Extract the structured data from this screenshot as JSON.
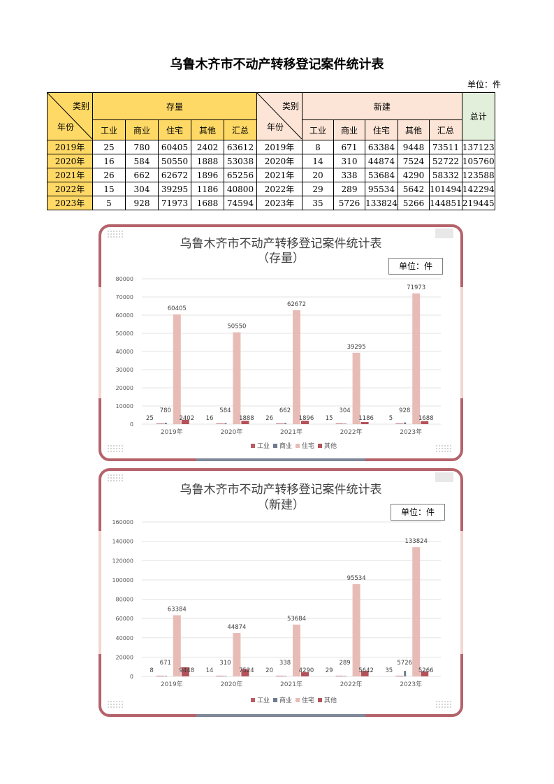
{
  "title": "乌鲁木齐市不动产转移登记案件统计表",
  "unit_label": "单位：件",
  "table": {
    "category_label": "类别",
    "year_label": "年份",
    "group_stock": "存量",
    "group_new": "新建",
    "total_label": "总计",
    "sub_headers": [
      "工业",
      "商业",
      "住宅",
      "其他",
      "汇总"
    ],
    "rows": [
      {
        "year": "2019年",
        "stock": [
          "25",
          "780",
          "60405",
          "2402",
          "63612"
        ],
        "new": [
          "8",
          "671",
          "63384",
          "9448",
          "73511"
        ],
        "total": "137123"
      },
      {
        "year": "2020年",
        "stock": [
          "16",
          "584",
          "50550",
          "1888",
          "53038"
        ],
        "new": [
          "14",
          "310",
          "44874",
          "7524",
          "52722"
        ],
        "total": "105760"
      },
      {
        "year": "2021年",
        "stock": [
          "26",
          "662",
          "62672",
          "1896",
          "65256"
        ],
        "new": [
          "20",
          "338",
          "53684",
          "4290",
          "58332"
        ],
        "total": "123588"
      },
      {
        "year": "2022年",
        "stock": [
          "15",
          "304",
          "39295",
          "1186",
          "40800"
        ],
        "new": [
          "29",
          "289",
          "95534",
          "5642",
          "101494"
        ],
        "total": "142294"
      },
      {
        "year": "2023年",
        "stock": [
          "5",
          "928",
          "71973",
          "1688",
          "74594"
        ],
        "new": [
          "35",
          "5726",
          "133824",
          "5266",
          "144851"
        ],
        "total": "219445"
      }
    ]
  },
  "colors": {
    "industrial": "#b85c63",
    "commercial": "#6e7b8f",
    "residential": "#e8bcb6",
    "other": "#b4525a",
    "frame": "#b5636b",
    "frame_bottom": "#7e8899"
  },
  "chart_data": [
    {
      "type": "bar",
      "title": "乌鲁木齐市不动产转移登记案件统计表",
      "subtitle": "（存量）",
      "unit": "单位：件",
      "categories": [
        "2019年",
        "2020年",
        "2021年",
        "2022年",
        "2023年"
      ],
      "series": [
        {
          "name": "工业",
          "values": [
            25,
            16,
            26,
            15,
            5
          ]
        },
        {
          "name": "商业",
          "values": [
            780,
            584,
            662,
            304,
            928
          ]
        },
        {
          "name": "住宅",
          "values": [
            60405,
            50550,
            62672,
            39295,
            71973
          ]
        },
        {
          "name": "其他",
          "values": [
            2402,
            1888,
            1896,
            1186,
            1688
          ]
        }
      ],
      "ylim": [
        0,
        80000
      ],
      "yticks": [
        0,
        10000,
        20000,
        30000,
        40000,
        50000,
        60000,
        70000,
        80000
      ],
      "legend": "bottom",
      "grid": true
    },
    {
      "type": "bar",
      "title": "乌鲁木齐市不动产转移登记案件统计表",
      "subtitle": "（新建）",
      "unit": "单位：件",
      "categories": [
        "2019年",
        "2020年",
        "2021年",
        "2022年",
        "2023年"
      ],
      "series": [
        {
          "name": "工业",
          "values": [
            8,
            14,
            20,
            29,
            35
          ]
        },
        {
          "name": "商业",
          "values": [
            671,
            310,
            338,
            289,
            5726
          ]
        },
        {
          "name": "住宅",
          "values": [
            63384,
            44874,
            53684,
            95534,
            133824
          ]
        },
        {
          "name": "其他",
          "values": [
            9448,
            7524,
            4290,
            5642,
            5266
          ]
        }
      ],
      "ylim": [
        0,
        160000
      ],
      "yticks": [
        0,
        20000,
        40000,
        60000,
        80000,
        100000,
        120000,
        140000,
        160000
      ],
      "legend": "bottom",
      "grid": true
    }
  ]
}
